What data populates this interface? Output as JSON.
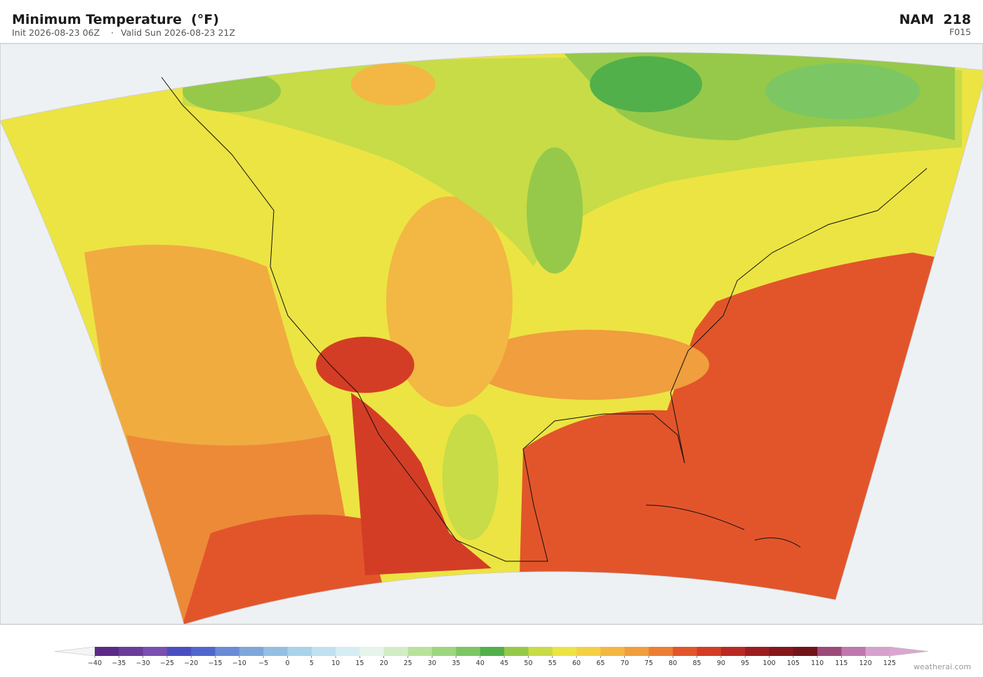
{
  "header": {
    "title": "Minimum Temperature  (°F)",
    "init": "Init 2026-08-23 06Z",
    "separator": "·",
    "valid": "Valid Sun 2026-08-23 21Z",
    "model": "NAM  218",
    "forecast_hour": "F015"
  },
  "colorbar": {
    "ticks": [
      "−40",
      "−35",
      "−30",
      "−25",
      "−20",
      "−15",
      "−10",
      "−5",
      "0",
      "5",
      "10",
      "15",
      "20",
      "25",
      "30",
      "35",
      "40",
      "45",
      "50",
      "55",
      "60",
      "65",
      "70",
      "75",
      "80",
      "85",
      "90",
      "95",
      "100",
      "105",
      "110",
      "115",
      "120",
      "125"
    ],
    "colors": [
      "#5b2a86",
      "#6a3d9a",
      "#7b4fb0",
      "#4a4fbf",
      "#4f67cc",
      "#6a8bd6",
      "#7fa6dc",
      "#93bfe3",
      "#a8d3ea",
      "#c0e1ef",
      "#d6eef3",
      "#e6f4ea",
      "#d2edc4",
      "#b9e29c",
      "#9dd67f",
      "#7cc664",
      "#52b04a",
      "#96c94a",
      "#c7dc47",
      "#ece443",
      "#f5d045",
      "#f3b743",
      "#f09e3e",
      "#ec7f35",
      "#e2552a",
      "#d43d25",
      "#b92a22",
      "#9c1d1e",
      "#86171a",
      "#701418",
      "#9b4a7a",
      "#bf78ad",
      "#d6a2cc"
    ],
    "under_color": "#f4f4f4",
    "over_color": "#d9a7d2"
  },
  "watermark": "weatherai.com"
}
